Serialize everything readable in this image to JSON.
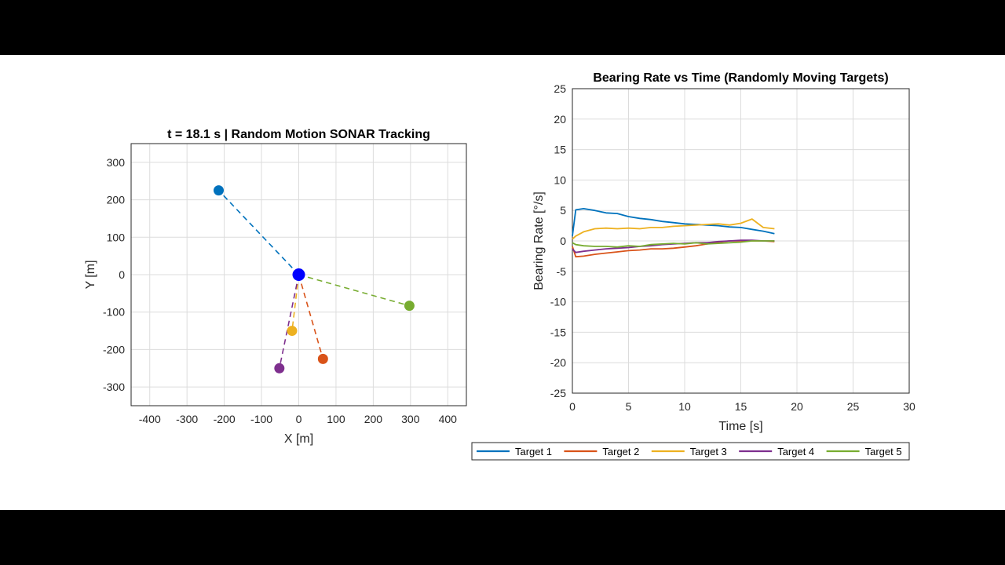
{
  "chart_data": [
    {
      "type": "scatter",
      "title": "t = 18.1 s | Random Motion SONAR Tracking",
      "xlabel": "X [m]",
      "ylabel": "Y [m]",
      "xlim": [
        -450,
        450
      ],
      "ylim": [
        -350,
        350
      ],
      "xticks": [
        -400,
        -300,
        -200,
        -100,
        0,
        100,
        200,
        300,
        400
      ],
      "yticks": [
        -300,
        -200,
        -100,
        0,
        100,
        200,
        300
      ],
      "grid": true,
      "sonar": {
        "x": 0,
        "y": 0,
        "color": "#0000ff"
      },
      "targets": [
        {
          "name": "Target 1",
          "x": -215,
          "y": 225,
          "color": "#0072bd"
        },
        {
          "name": "Target 2",
          "x": 65,
          "y": -225,
          "color": "#d95319"
        },
        {
          "name": "Target 3",
          "x": -18,
          "y": -150,
          "color": "#edb120"
        },
        {
          "name": "Target 4",
          "x": -52,
          "y": -250,
          "color": "#7e2f8e"
        },
        {
          "name": "Target 5",
          "x": 297,
          "y": -83,
          "color": "#77ac30"
        }
      ]
    },
    {
      "type": "line",
      "title": "Bearing Rate vs Time (Randomly Moving Targets)",
      "xlabel": "Time [s]",
      "ylabel": "Bearing Rate [°/s]",
      "xlim": [
        0,
        30
      ],
      "ylim": [
        -25,
        25
      ],
      "xticks": [
        0,
        5,
        10,
        15,
        20,
        25,
        30
      ],
      "yticks": [
        25,
        20,
        15,
        10,
        5,
        0,
        -5,
        -10,
        -15,
        -20,
        -25
      ],
      "grid": true,
      "legend": "bottom-outside",
      "x": [
        0,
        0.3,
        1,
        2,
        3,
        4,
        5,
        6,
        7,
        8,
        9,
        10,
        11,
        12,
        13,
        14,
        15,
        16,
        17,
        18
      ],
      "series": [
        {
          "name": "Target 1",
          "color": "#0072bd",
          "values": [
            0.8,
            5.1,
            5.3,
            5.0,
            4.6,
            4.5,
            4.0,
            3.7,
            3.5,
            3.2,
            3.0,
            2.8,
            2.7,
            2.6,
            2.5,
            2.3,
            2.2,
            1.9,
            1.6,
            1.2
          ]
        },
        {
          "name": "Target 2",
          "color": "#d95319",
          "values": [
            -0.9,
            -2.6,
            -2.5,
            -2.2,
            -2.0,
            -1.8,
            -1.6,
            -1.5,
            -1.3,
            -1.3,
            -1.2,
            -1.0,
            -0.8,
            -0.5,
            -0.2,
            0.0,
            0.0,
            0.0,
            0.0,
            -0.1
          ]
        },
        {
          "name": "Target 3",
          "color": "#edb120",
          "values": [
            0.3,
            0.8,
            1.5,
            2.0,
            2.1,
            2.0,
            2.1,
            2.0,
            2.2,
            2.2,
            2.4,
            2.5,
            2.6,
            2.7,
            2.8,
            2.6,
            2.9,
            3.6,
            2.2,
            2.0
          ]
        },
        {
          "name": "Target 4",
          "color": "#7e2f8e",
          "values": [
            -1.3,
            -1.9,
            -1.7,
            -1.5,
            -1.3,
            -1.2,
            -1.1,
            -0.9,
            -0.8,
            -0.6,
            -0.5,
            -0.4,
            -0.3,
            -0.3,
            -0.1,
            0.0,
            0.1,
            0.1,
            0.0,
            0.0
          ]
        },
        {
          "name": "Target 5",
          "color": "#77ac30",
          "values": [
            -0.3,
            -0.6,
            -0.8,
            -0.9,
            -0.9,
            -1.0,
            -0.8,
            -0.9,
            -0.6,
            -0.5,
            -0.4,
            -0.5,
            -0.3,
            -0.5,
            -0.4,
            -0.3,
            -0.2,
            0.0,
            0.0,
            0.0
          ]
        }
      ]
    }
  ]
}
